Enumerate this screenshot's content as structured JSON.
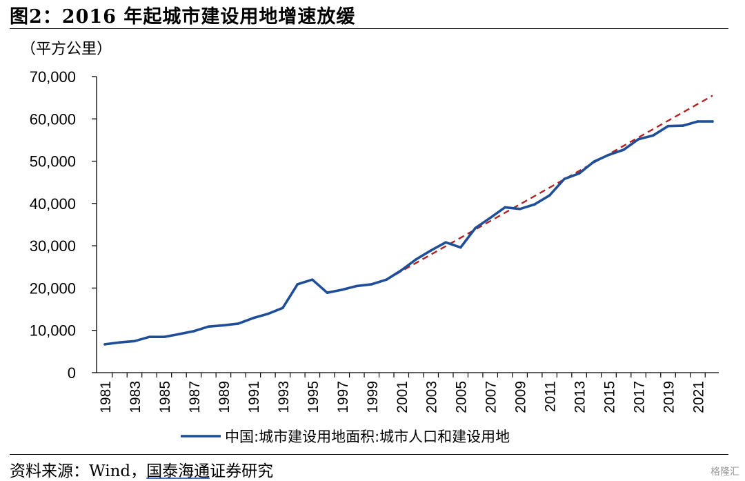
{
  "figure": {
    "title": "图2：2016 年起城市建设用地增速放缓",
    "source_prefix": "资料来源：Wind，",
    "source_underlined": "国泰海通",
    "source_suffix": "证券研究",
    "watermark": "格隆汇"
  },
  "chart_data": {
    "type": "line",
    "unit_label": "（平方公里）",
    "x": [
      1981,
      1982,
      1983,
      1984,
      1985,
      1986,
      1987,
      1988,
      1989,
      1990,
      1991,
      1992,
      1993,
      1994,
      1995,
      1996,
      1997,
      1998,
      1999,
      2000,
      2001,
      2002,
      2003,
      2004,
      2005,
      2006,
      2007,
      2008,
      2009,
      2010,
      2011,
      2012,
      2013,
      2014,
      2015,
      2016,
      2017,
      2018,
      2019,
      2020,
      2021,
      2022
    ],
    "series": [
      {
        "name": "中国:城市建设用地面积:城市人口和建设用地",
        "color": "#1f4e99",
        "values": [
          6700,
          7150,
          7450,
          8450,
          8450,
          9100,
          9800,
          10900,
          11200,
          11600,
          12900,
          13900,
          15300,
          20900,
          22000,
          18900,
          19600,
          20500,
          20900,
          22000,
          24200,
          26800,
          28900,
          30800,
          29600,
          34200,
          36600,
          39100,
          38700,
          39800,
          41900,
          45800,
          47100,
          49900,
          51500,
          52700,
          55200,
          56100,
          58300,
          58400,
          59400,
          59400
        ]
      }
    ],
    "trend": {
      "color": "#b22222",
      "style": "dashed",
      "x_start": 2000,
      "y_start": 22000,
      "x_end": 2022,
      "y_end": 65500
    },
    "xticks": [
      "1981",
      "1983",
      "1985",
      "1987",
      "1989",
      "1991",
      "1993",
      "1995",
      "1997",
      "1999",
      "2001",
      "2003",
      "2005",
      "2007",
      "2009",
      "2011",
      "2013",
      "2015",
      "2017",
      "2019",
      "2021"
    ],
    "yticks": [
      "0",
      "10,000",
      "20,000",
      "30,000",
      "40,000",
      "50,000",
      "60,000",
      "70,000"
    ],
    "ylim": [
      0,
      70000
    ],
    "xlim": [
      1981,
      2022
    ],
    "legend_position": "bottom-center",
    "grid": false
  }
}
